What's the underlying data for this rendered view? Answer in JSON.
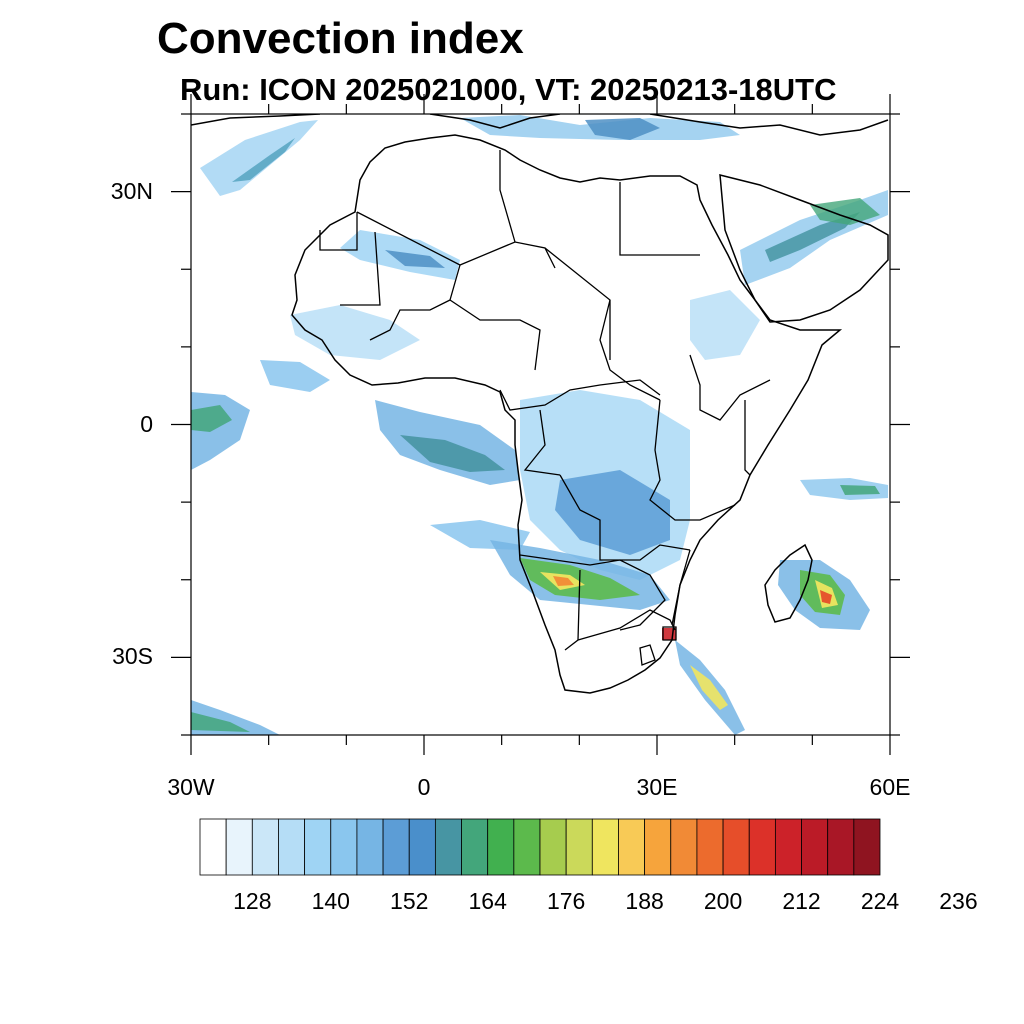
{
  "title": "Convection index",
  "subtitle": "Run: ICON 2025021000,  VT: 20250213-18UTC",
  "axes": {
    "lon_range": [
      -30,
      60
    ],
    "lat_range": [
      -40,
      40
    ],
    "y_ticks": [
      {
        "lat": 30,
        "label": "30N"
      },
      {
        "lat": 0,
        "label": "0"
      },
      {
        "lat": -30,
        "label": "30S"
      }
    ],
    "x_ticks": [
      {
        "lon": -30,
        "label": "30W"
      },
      {
        "lon": 0,
        "label": "0"
      },
      {
        "lon": 30,
        "label": "30E"
      },
      {
        "lon": 60,
        "label": "60E"
      }
    ]
  },
  "colorbar": {
    "colors": [
      "#ffffff",
      "#e8f4fc",
      "#cbe7f8",
      "#b5ddf6",
      "#9fd4f4",
      "#8ac6ee",
      "#76b5e4",
      "#5c9dd6",
      "#4a8fcb",
      "#4795a3",
      "#43a67b",
      "#41b04f",
      "#5cba4c",
      "#a6cc4e",
      "#cbd95a",
      "#efe55f",
      "#f8ca56",
      "#f6a43c",
      "#f18a36",
      "#ec6b2d",
      "#e64e2a",
      "#dc3129",
      "#cc2229",
      "#bb1b27",
      "#a91726",
      "#8f1420"
    ],
    "labels": [
      "128",
      "140",
      "152",
      "164",
      "176",
      "188",
      "200",
      "212",
      "224",
      "236"
    ]
  }
}
